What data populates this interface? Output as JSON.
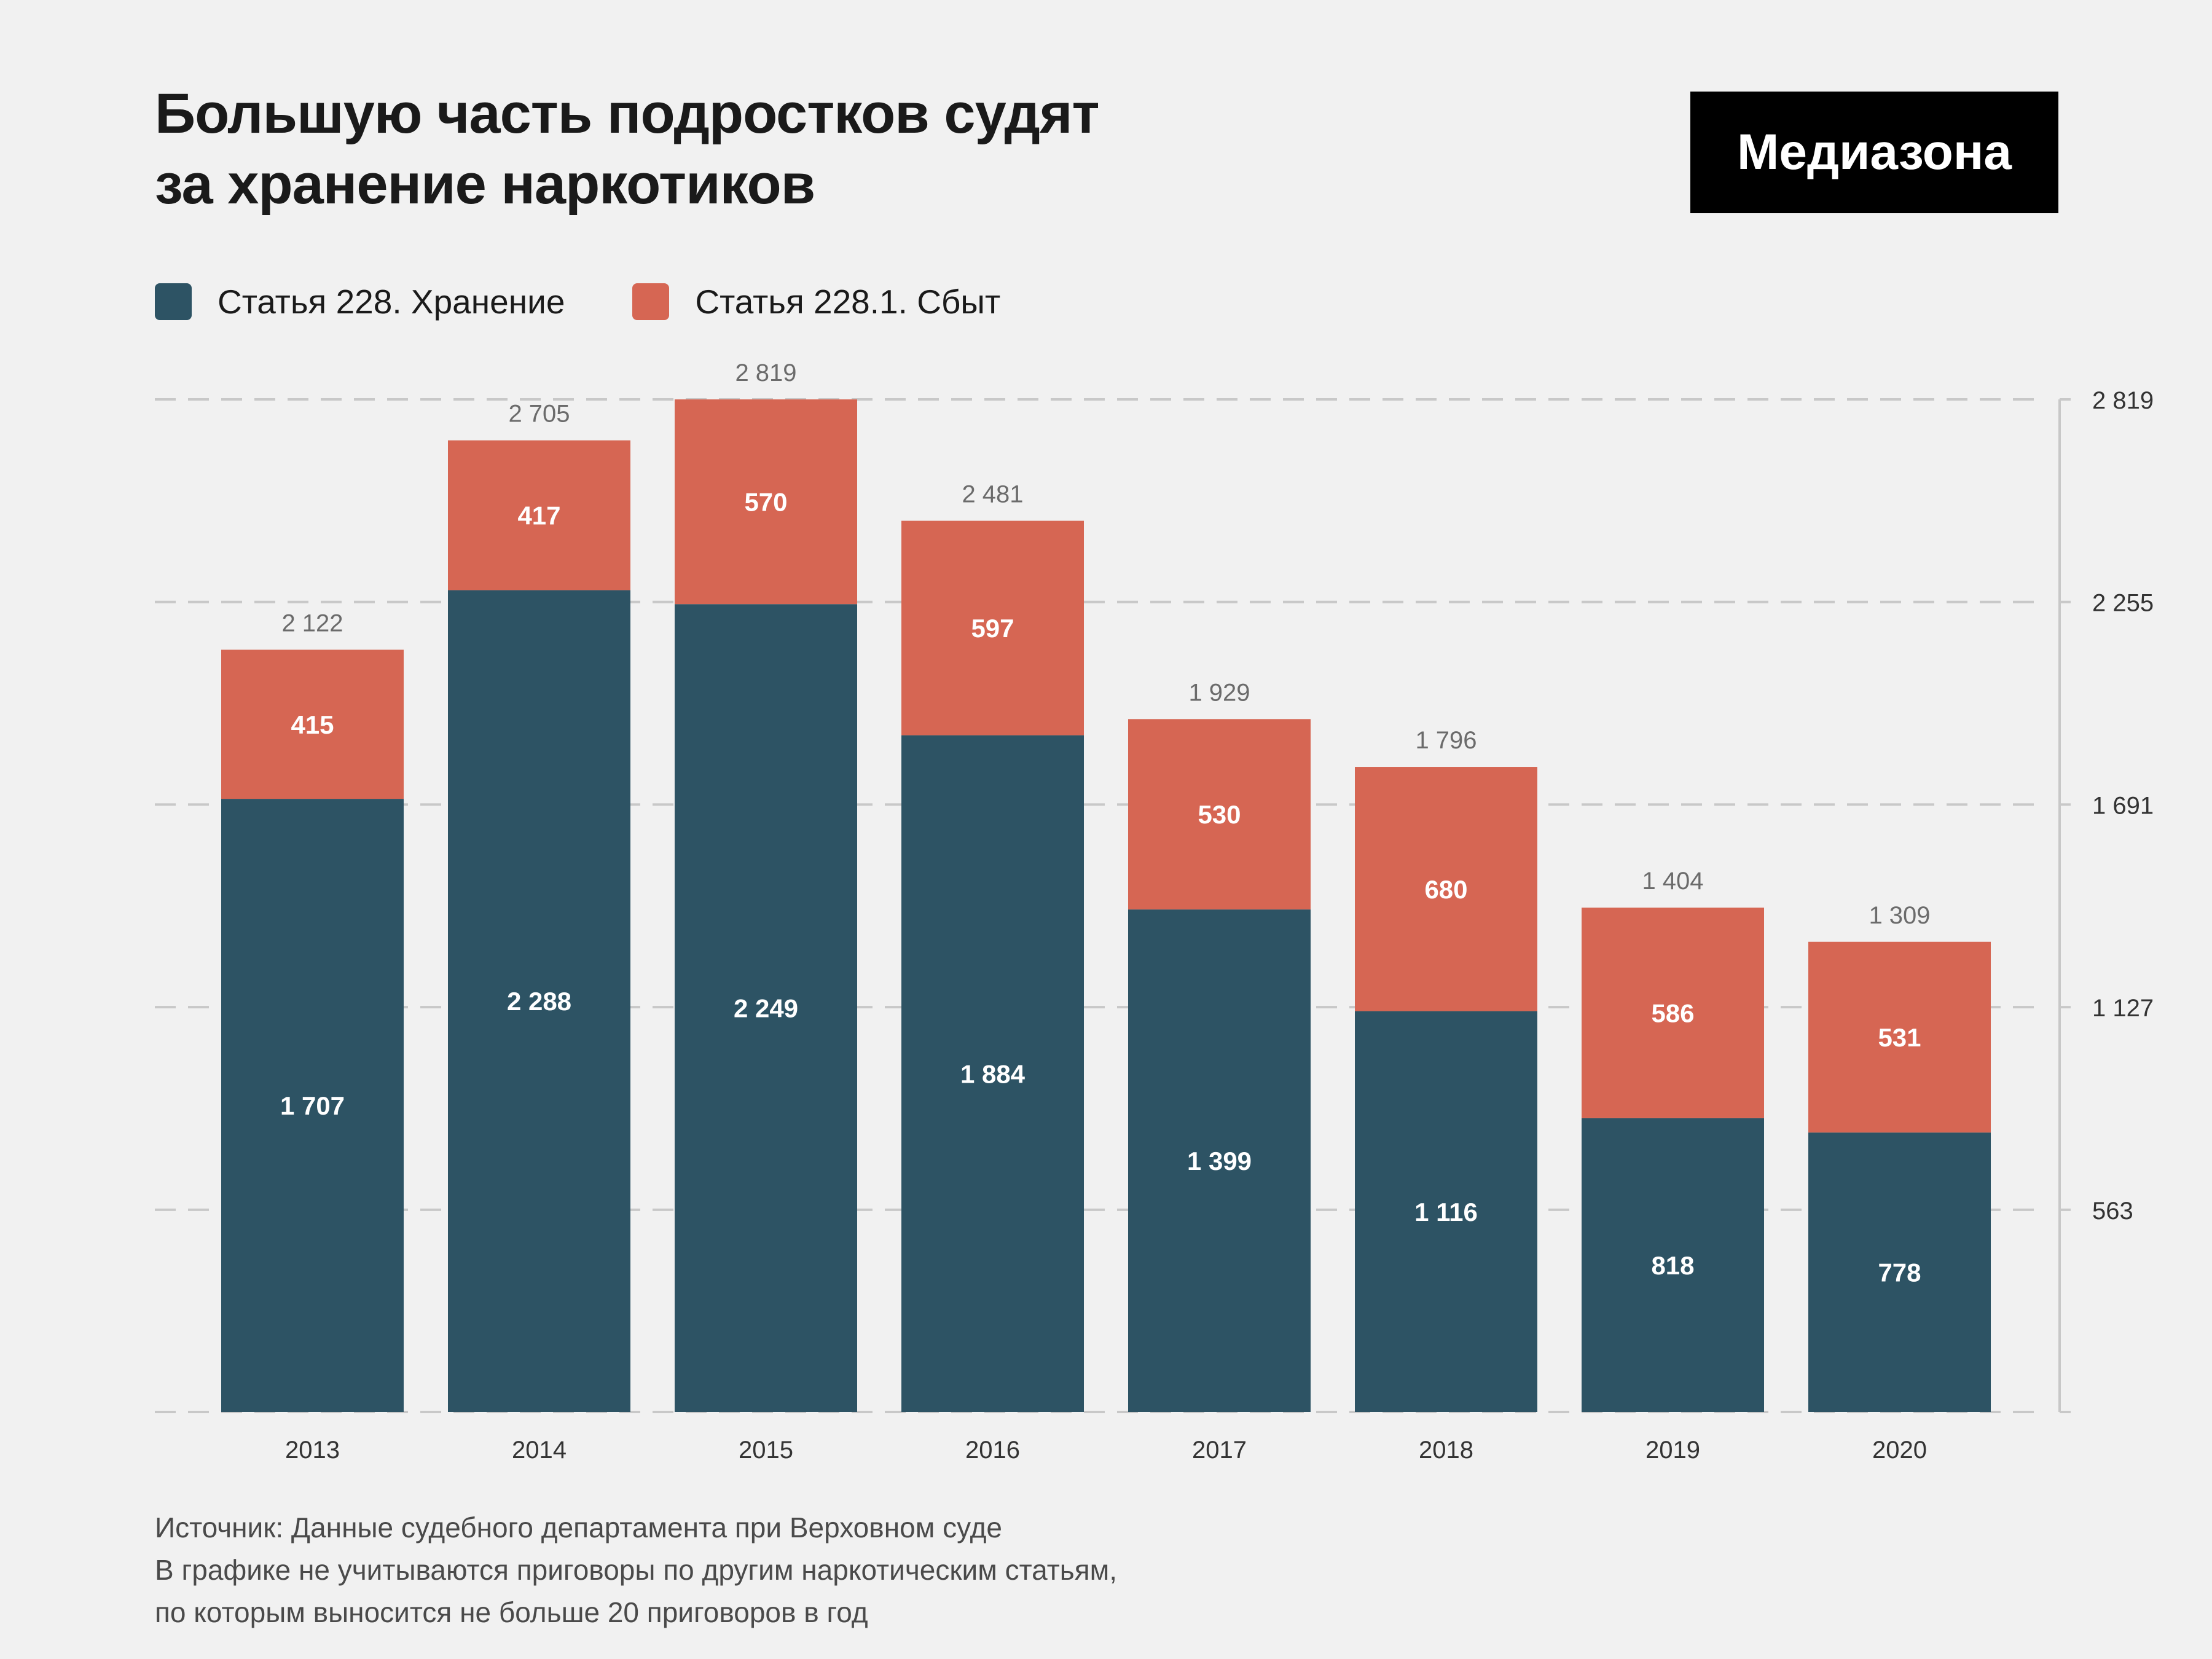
{
  "title": [
    "Большую часть подростков судят",
    "за хранение наркотиков"
  ],
  "logo": "Медиазона",
  "colors": {
    "storage": "#2d5364",
    "sale": "#d66653",
    "grid": "#c8c8c8",
    "total": "#6b6b6b"
  },
  "chart_data": {
    "type": "bar",
    "stacked": true,
    "categories": [
      "2013",
      "2014",
      "2015",
      "2016",
      "2017",
      "2018",
      "2019",
      "2020"
    ],
    "series": [
      {
        "name": "Статья 228. Хранение",
        "values": [
          1707,
          2288,
          2249,
          1884,
          1399,
          1116,
          818,
          778
        ],
        "labels": [
          "1 707",
          "2 288",
          "2 249",
          "1 884",
          "1 399",
          "1 116",
          "818",
          "778"
        ]
      },
      {
        "name": "Статья 228.1. Сбыт",
        "values": [
          415,
          417,
          570,
          597,
          530,
          680,
          586,
          531
        ],
        "labels": [
          "415",
          "417",
          "570",
          "597",
          "530",
          "680",
          "586",
          "531"
        ]
      }
    ],
    "totals": [
      "2 122",
      "2 705",
      "2 819",
      "2 481",
      "1 929",
      "1 796",
      "1 404",
      "1 309"
    ],
    "yticks": [
      0,
      563,
      1127,
      1691,
      2255,
      2819
    ],
    "ytick_labels": [
      "",
      "563",
      "1 127",
      "1 691",
      "2 255",
      "2 819"
    ],
    "ylim": [
      0,
      2819
    ],
    "grid": true,
    "yaxis_position": "right",
    "legend_position": "top-left"
  },
  "footer": [
    "Источник: Данные судебного департамента при Верховном суде",
    "В графике не учитываются приговоры по другим наркотическим статьям,",
    "по которым выносится не больше 20 приговоров в год"
  ]
}
